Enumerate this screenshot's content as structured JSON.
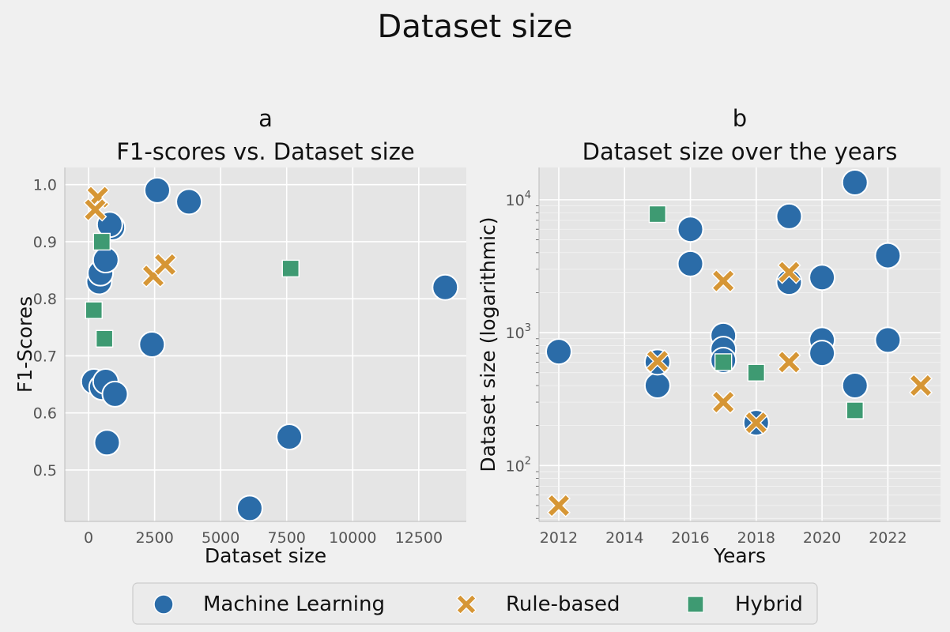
{
  "figure": {
    "title": "Dataset size"
  },
  "legend": {
    "placement": "bottom-center",
    "entries": [
      {
        "label": "Machine Learning",
        "marker": "circle",
        "color": "#2b6ca8"
      },
      {
        "label": "Rule-based",
        "marker": "x",
        "color": "#d69635"
      },
      {
        "label": "Hybrid",
        "marker": "square",
        "color": "#3e9a72"
      }
    ]
  },
  "chart_data": [
    {
      "type": "scatter",
      "panel_label": "a",
      "title": "F1-scores vs. Dataset size",
      "xlabel": "Dataset size",
      "ylabel": "F1-Scores",
      "xlim": [
        -900,
        14300
      ],
      "ylim": [
        0.41,
        1.03
      ],
      "xticks": [
        0,
        2500,
        5000,
        7500,
        10000,
        12500
      ],
      "xtick_labels": [
        "0",
        "2500",
        "5000",
        "7500",
        "10000",
        "12500"
      ],
      "yticks": [
        0.5,
        0.6,
        0.7,
        0.8,
        0.9,
        1.0
      ],
      "ytick_labels": [
        "0.5",
        "0.6",
        "0.7",
        "0.8",
        "0.9",
        "1.0"
      ],
      "grid": true,
      "series": [
        {
          "name": "Machine Learning",
          "marker": "circle",
          "color": "#2b6ca8",
          "x": [
            200,
            500,
            650,
            700,
            400,
            450,
            650,
            900,
            800,
            2600,
            3800,
            2400,
            7600,
            6100,
            13500,
            1000
          ],
          "y": [
            0.655,
            0.645,
            0.655,
            0.548,
            0.83,
            0.845,
            0.868,
            0.925,
            0.93,
            0.99,
            0.97,
            0.72,
            0.558,
            0.433,
            0.82,
            0.633
          ]
        },
        {
          "name": "Rule-based",
          "marker": "x",
          "color": "#d69635",
          "x": [
            350,
            250,
            2450,
            2900
          ],
          "y": [
            0.978,
            0.956,
            0.84,
            0.86
          ]
        },
        {
          "name": "Hybrid",
          "marker": "square",
          "color": "#3e9a72",
          "x": [
            200,
            500,
            600,
            7650
          ],
          "y": [
            0.78,
            0.9,
            0.73,
            0.853
          ]
        }
      ]
    },
    {
      "type": "scatter",
      "panel_label": "b",
      "title": "Dataset size over the years",
      "xlabel": "Years",
      "ylabel": "Dataset size (logarithmic)",
      "yscale": "log",
      "xlim": [
        2011.4,
        2023.6
      ],
      "ylim": [
        38,
        17500
      ],
      "xticks": [
        2012,
        2014,
        2016,
        2018,
        2020,
        2022
      ],
      "xtick_labels": [
        "2012",
        "2014",
        "2016",
        "2018",
        "2020",
        "2022"
      ],
      "yticks": [
        100,
        1000,
        10000
      ],
      "ytick_labels": [
        {
          "base": "10",
          "exp": "2"
        },
        {
          "base": "10",
          "exp": "3"
        },
        {
          "base": "10",
          "exp": "4"
        }
      ],
      "grid": true,
      "series": [
        {
          "name": "Machine Learning",
          "marker": "circle",
          "color": "#2b6ca8",
          "x": [
            2012,
            2015,
            2015,
            2016,
            2016,
            2017,
            2017,
            2017,
            2018,
            2019,
            2019,
            2020,
            2020,
            2020,
            2021,
            2021,
            2022,
            2022
          ],
          "y": [
            720,
            400,
            600,
            6000,
            3300,
            950,
            750,
            620,
            210,
            2400,
            7500,
            2600,
            880,
            700,
            400,
            13500,
            3800,
            880
          ]
        },
        {
          "name": "Rule-based",
          "marker": "x",
          "color": "#d69635",
          "x": [
            2012,
            2015,
            2017,
            2017,
            2018,
            2019,
            2019,
            2023
          ],
          "y": [
            50,
            610,
            2450,
            300,
            210,
            2850,
            600,
            400
          ]
        },
        {
          "name": "Hybrid",
          "marker": "square",
          "color": "#3e9a72",
          "x": [
            2015,
            2017,
            2018,
            2021
          ],
          "y": [
            7800,
            600,
            500,
            260
          ]
        }
      ]
    }
  ]
}
